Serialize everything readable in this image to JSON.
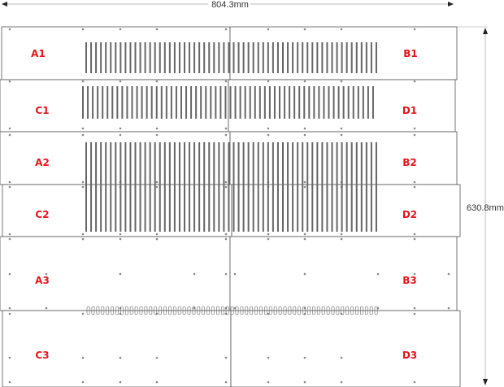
{
  "dimensions": {
    "width": "804.3mm",
    "height": "630.8mm"
  },
  "panels": {
    "A1": "A1",
    "B1": "B1",
    "C1": "C1",
    "D1": "D1",
    "A2": "A2",
    "B2": "B2",
    "C2": "C2",
    "D2": "D2",
    "A3": "A3",
    "B3": "B3",
    "C3": "C3",
    "D3": "D3"
  },
  "colors": {
    "label": "#e8141c",
    "outline": "#555555",
    "slot": "#666666"
  }
}
